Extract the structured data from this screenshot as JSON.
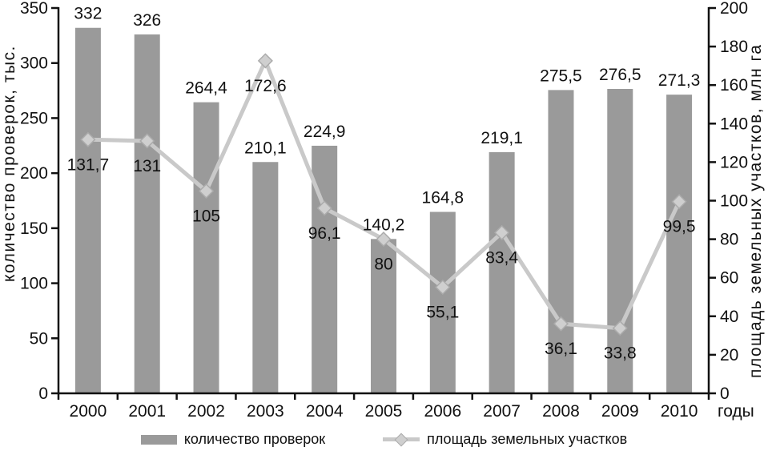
{
  "chart_data": {
    "type": "bar+line combo",
    "categories": [
      "2000",
      "2001",
      "2002",
      "2003",
      "2004",
      "2005",
      "2006",
      "2007",
      "2008",
      "2009",
      "2010"
    ],
    "series": [
      {
        "name": "количество проверок",
        "type": "bar",
        "axis": "left",
        "values": [
          332,
          326,
          264.4,
          210.1,
          224.9,
          140.2,
          164.8,
          219.1,
          275.5,
          276.5,
          271.3
        ],
        "labels": [
          "332",
          "326",
          "264,4",
          "210,1",
          "224,9",
          "140,2",
          "164,8",
          "219,1",
          "275,5",
          "276,5",
          "271,3"
        ]
      },
      {
        "name": "площадь земельных участков",
        "type": "line",
        "axis": "right",
        "marker": "diamond",
        "values": [
          131.7,
          131,
          105,
          172.6,
          96.1,
          80,
          55.1,
          83.4,
          36.1,
          33.8,
          99.5
        ],
        "labels": [
          "131,7",
          "131",
          "105",
          "172,6",
          "96,1",
          "80",
          "55,1",
          "83,4",
          "36,1",
          "33,8",
          "99,5"
        ]
      }
    ],
    "left_axis": {
      "title": "количество проверок, тыс.",
      "min": 0,
      "max": 350,
      "step": 50,
      "tick_labels": [
        "0",
        "50",
        "100",
        "150",
        "200",
        "250",
        "300",
        "350"
      ]
    },
    "right_axis": {
      "title": "площадь земельных участков, млн га",
      "min": 0,
      "max": 200,
      "step": 20,
      "tick_labels": [
        "0",
        "20",
        "40",
        "60",
        "80",
        "100",
        "120",
        "140",
        "160",
        "180",
        "200"
      ]
    },
    "x_axis": {
      "title": "годы"
    },
    "legend_position": "bottom",
    "grid": "off",
    "colors": {
      "bar": "#9a9a9a",
      "line": "#c9c9c9",
      "marker_fill": "#cfcfcf",
      "marker_stroke": "#ababab",
      "axis": "#111111",
      "text": "#111111",
      "background": "#ffffff"
    }
  }
}
